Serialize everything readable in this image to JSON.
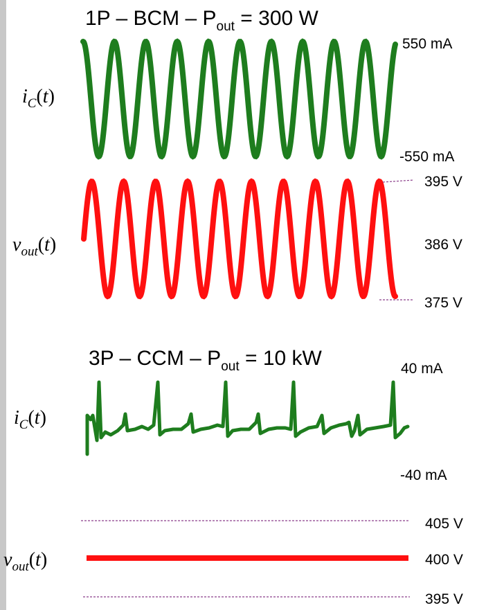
{
  "colors": {
    "current": "#1e7d1e",
    "voltage": "#ff1010",
    "reference_line": "#8a3d8a",
    "left_bar": "#c8c8c8"
  },
  "top": {
    "title_main": "1P – BCM – P",
    "title_sub": "out",
    "title_rest": " = 300 W",
    "current_label": {
      "var": "i",
      "sub": "C",
      "arg": "(t)"
    },
    "current_max": "550 mA",
    "current_min": "-550 mA",
    "voltage_label": {
      "var": "v",
      "sub": "out",
      "arg": "(t)"
    },
    "voltage_max": "395 V",
    "voltage_mid": "386 V",
    "voltage_min": "375 V",
    "cycles": 10
  },
  "bottom": {
    "title_main": "3P – CCM – P",
    "title_sub": "out",
    "title_rest": " = 10 kW",
    "current_label": {
      "var": "i",
      "sub": "C",
      "arg": "(t)"
    },
    "current_max": "40 mA",
    "current_min": "-40 mA",
    "voltage_label": {
      "var": "v",
      "sub": "out",
      "arg": "(t)"
    },
    "voltage_max": "405 V",
    "voltage_mid": "400 V",
    "voltage_min": "395 V"
  }
}
